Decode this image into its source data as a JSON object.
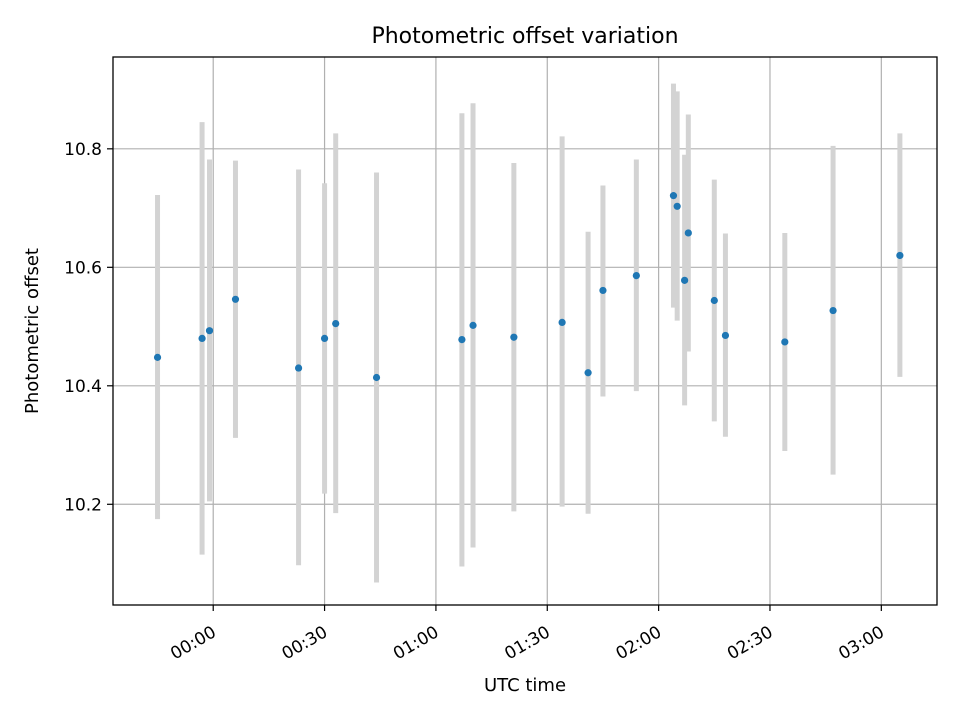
{
  "chart_data": {
    "type": "scatter",
    "title": "Photometric offset variation",
    "xlabel": "UTC time",
    "ylabel": "Photometric offset",
    "x_axis": "time",
    "xlim": [
      "23:33",
      "03:15"
    ],
    "ylim": [
      10.03,
      10.955
    ],
    "x_ticks": [
      "00:00",
      "00:30",
      "01:00",
      "01:30",
      "02:00",
      "02:30",
      "03:00"
    ],
    "y_ticks": [
      10.2,
      10.4,
      10.6,
      10.8
    ],
    "grid": true,
    "point_color": "#1f77b4",
    "error_color": "#d3d3d3",
    "points": [
      {
        "x": "23:45",
        "y": 10.448,
        "ylow": 10.175,
        "yhigh": 10.722
      },
      {
        "x": "23:57",
        "y": 10.48,
        "ylow": 10.115,
        "yhigh": 10.845
      },
      {
        "x": "23:59",
        "y": 10.493,
        "ylow": 10.205,
        "yhigh": 10.782
      },
      {
        "x": "00:06",
        "y": 10.546,
        "ylow": 10.312,
        "yhigh": 10.78
      },
      {
        "x": "00:23",
        "y": 10.43,
        "ylow": 10.097,
        "yhigh": 10.765
      },
      {
        "x": "00:30",
        "y": 10.48,
        "ylow": 10.218,
        "yhigh": 10.742
      },
      {
        "x": "00:33",
        "y": 10.505,
        "ylow": 10.185,
        "yhigh": 10.826
      },
      {
        "x": "00:44",
        "y": 10.414,
        "ylow": 10.068,
        "yhigh": 10.76
      },
      {
        "x": "01:07",
        "y": 10.478,
        "ylow": 10.095,
        "yhigh": 10.86
      },
      {
        "x": "01:10",
        "y": 10.502,
        "ylow": 10.127,
        "yhigh": 10.877
      },
      {
        "x": "01:21",
        "y": 10.482,
        "ylow": 10.188,
        "yhigh": 10.776
      },
      {
        "x": "01:34",
        "y": 10.507,
        "ylow": 10.196,
        "yhigh": 10.821
      },
      {
        "x": "01:41",
        "y": 10.422,
        "ylow": 10.184,
        "yhigh": 10.66
      },
      {
        "x": "01:45",
        "y": 10.561,
        "ylow": 10.382,
        "yhigh": 10.738
      },
      {
        "x": "01:54",
        "y": 10.586,
        "ylow": 10.391,
        "yhigh": 10.782
      },
      {
        "x": "02:04",
        "y": 10.721,
        "ylow": 10.532,
        "yhigh": 10.91
      },
      {
        "x": "02:05",
        "y": 10.703,
        "ylow": 10.51,
        "yhigh": 10.897
      },
      {
        "x": "02:07",
        "y": 10.578,
        "ylow": 10.367,
        "yhigh": 10.79
      },
      {
        "x": "02:08",
        "y": 10.658,
        "ylow": 10.458,
        "yhigh": 10.858
      },
      {
        "x": "02:15",
        "y": 10.544,
        "ylow": 10.34,
        "yhigh": 10.748
      },
      {
        "x": "02:18",
        "y": 10.485,
        "ylow": 10.314,
        "yhigh": 10.657
      },
      {
        "x": "02:34",
        "y": 10.474,
        "ylow": 10.29,
        "yhigh": 10.658
      },
      {
        "x": "02:47",
        "y": 10.527,
        "ylow": 10.25,
        "yhigh": 10.805
      },
      {
        "x": "03:05",
        "y": 10.62,
        "ylow": 10.415,
        "yhigh": 10.826
      }
    ]
  }
}
